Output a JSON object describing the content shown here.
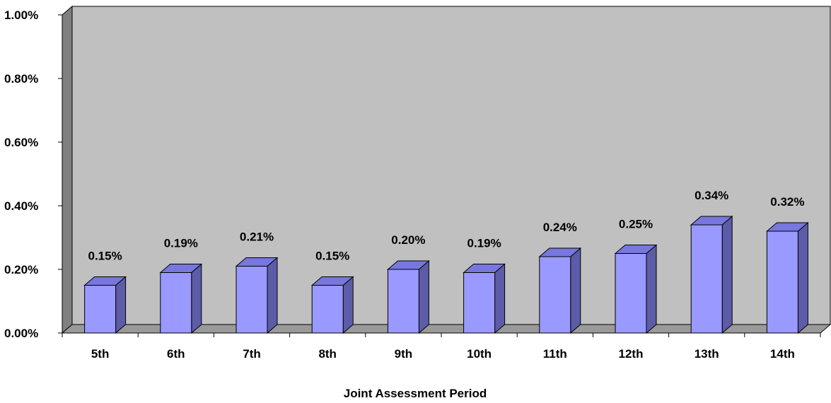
{
  "chart_data": {
    "type": "bar",
    "title": "",
    "xlabel": "Joint Assessment Period",
    "ylabel": "",
    "categories": [
      "5th",
      "6th",
      "7th",
      "8th",
      "9th",
      "10th",
      "11th",
      "12th",
      "13th",
      "14th"
    ],
    "values": [
      0.15,
      0.19,
      0.21,
      0.15,
      0.2,
      0.19,
      0.24,
      0.25,
      0.34,
      0.32
    ],
    "value_labels": [
      "0.15%",
      "0.19%",
      "0.21%",
      "0.15%",
      "0.20%",
      "0.19%",
      "0.24%",
      "0.25%",
      "0.34%",
      "0.32%"
    ],
    "y_ticks": [
      0,
      0.2,
      0.4,
      0.6,
      0.8,
      1.0
    ],
    "y_tick_labels": [
      "0.00%",
      "0.20%",
      "0.40%",
      "0.60%",
      "0.80%",
      "1.00%"
    ],
    "ylim": [
      0,
      1.0
    ],
    "grid": false,
    "legend": "none",
    "style": "3d",
    "colors": {
      "bar_front": "#9999ff",
      "bar_top": "#7777dd",
      "bar_side": "#5c5ca8",
      "plot_back": "#c0c0c0",
      "wall_side": "#808080",
      "floor": "#9a9a9a"
    }
  }
}
